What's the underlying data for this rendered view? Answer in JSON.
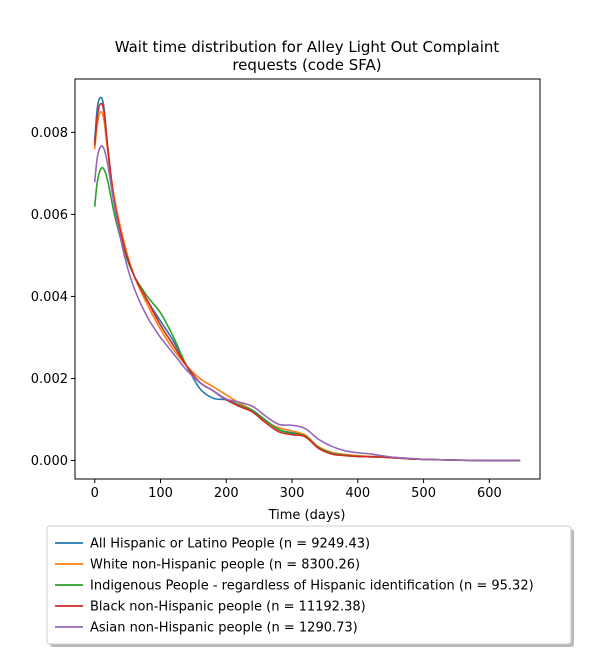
{
  "chart_data": {
    "type": "line",
    "title_lines": [
      "Wait time distribution  for Alley Light Out Complaint",
      "requests (code SFA)"
    ],
    "xlabel": "Time (days)",
    "ylabel": "",
    "xlim": [
      -30,
      677
    ],
    "ylim": [
      -0.00045,
      0.0093
    ],
    "x_ticks": [
      0,
      100,
      200,
      300,
      400,
      500,
      600
    ],
    "y_ticks": [
      0.0,
      0.002,
      0.004,
      0.006,
      0.008
    ],
    "y_tick_labels": [
      "0.000",
      "0.002",
      "0.004",
      "0.006",
      "0.008"
    ],
    "grid": false,
    "legend_placement": "below",
    "series": [
      {
        "name": "All Hispanic or Latino People (n = 9249.43)",
        "color": "#1f77b4",
        "points": [
          [
            0,
            0.0078
          ],
          [
            4,
            0.0086
          ],
          [
            9,
            0.00885
          ],
          [
            14,
            0.0086
          ],
          [
            20,
            0.0076
          ],
          [
            30,
            0.0063
          ],
          [
            45,
            0.0052
          ],
          [
            60,
            0.0045
          ],
          [
            80,
            0.0039
          ],
          [
            100,
            0.0034
          ],
          [
            120,
            0.0029
          ],
          [
            140,
            0.0023
          ],
          [
            160,
            0.00175
          ],
          [
            180,
            0.00152
          ],
          [
            200,
            0.00148
          ],
          [
            220,
            0.00135
          ],
          [
            240,
            0.00122
          ],
          [
            260,
            0.00098
          ],
          [
            280,
            0.00075
          ],
          [
            300,
            0.00068
          ],
          [
            320,
            0.00062
          ],
          [
            340,
            0.00032
          ],
          [
            360,
            0.00018
          ],
          [
            380,
            0.00014
          ],
          [
            400,
            0.00011
          ],
          [
            420,
            0.0001
          ],
          [
            440,
            9e-05
          ],
          [
            460,
            7e-05
          ],
          [
            480,
            5e-05
          ],
          [
            500,
            3e-05
          ],
          [
            550,
            1e-05
          ],
          [
            600,
            0.0
          ],
          [
            646,
            0.0
          ]
        ]
      },
      {
        "name": "White non-Hispanic people (n = 8300.26)",
        "color": "#ff7f0e",
        "points": [
          [
            0,
            0.0076
          ],
          [
            4,
            0.0082
          ],
          [
            9,
            0.0085
          ],
          [
            14,
            0.0083
          ],
          [
            20,
            0.0075
          ],
          [
            30,
            0.0064
          ],
          [
            45,
            0.0053
          ],
          [
            60,
            0.0045
          ],
          [
            80,
            0.0038
          ],
          [
            100,
            0.0032
          ],
          [
            120,
            0.0027
          ],
          [
            140,
            0.0023
          ],
          [
            160,
            0.002
          ],
          [
            180,
            0.0018
          ],
          [
            200,
            0.0016
          ],
          [
            220,
            0.0014
          ],
          [
            240,
            0.00122
          ],
          [
            260,
            0.00095
          ],
          [
            280,
            0.0008
          ],
          [
            300,
            0.00072
          ],
          [
            320,
            0.00062
          ],
          [
            340,
            0.00034
          ],
          [
            360,
            0.0002
          ],
          [
            380,
            0.00015
          ],
          [
            400,
            0.00012
          ],
          [
            420,
            0.0001
          ],
          [
            440,
            8e-05
          ],
          [
            460,
            6e-05
          ],
          [
            480,
            4e-05
          ],
          [
            500,
            3e-05
          ],
          [
            550,
            1e-05
          ],
          [
            600,
            0.0
          ],
          [
            646,
            0.0
          ]
        ]
      },
      {
        "name": "Indigenous People - regardless of Hispanic identification (n = 95.32)",
        "color": "#2ca02c",
        "points": [
          [
            0,
            0.0062
          ],
          [
            4,
            0.0068
          ],
          [
            9,
            0.0071
          ],
          [
            14,
            0.0071
          ],
          [
            20,
            0.0068
          ],
          [
            30,
            0.006
          ],
          [
            45,
            0.0051
          ],
          [
            60,
            0.0045
          ],
          [
            80,
            0.004
          ],
          [
            100,
            0.0036
          ],
          [
            120,
            0.003
          ],
          [
            140,
            0.0023
          ],
          [
            160,
            0.0019
          ],
          [
            180,
            0.0017
          ],
          [
            200,
            0.00148
          ],
          [
            220,
            0.00135
          ],
          [
            240,
            0.00122
          ],
          [
            260,
            0.00098
          ],
          [
            280,
            0.00075
          ],
          [
            300,
            0.00066
          ],
          [
            320,
            0.0006
          ],
          [
            340,
            0.00032
          ],
          [
            360,
            0.00018
          ],
          [
            380,
            0.00013
          ],
          [
            400,
            0.0001
          ],
          [
            420,
            9e-05
          ],
          [
            440,
            8e-05
          ],
          [
            460,
            6e-05
          ],
          [
            480,
            4e-05
          ],
          [
            500,
            3e-05
          ],
          [
            550,
            1e-05
          ],
          [
            600,
            0.0
          ],
          [
            646,
            0.0
          ]
        ]
      },
      {
        "name": "Black non-Hispanic people (n = 11192.38)",
        "color": "#d62728",
        "points": [
          [
            0,
            0.0077
          ],
          [
            4,
            0.0084
          ],
          [
            9,
            0.0087
          ],
          [
            14,
            0.0085
          ],
          [
            20,
            0.0076
          ],
          [
            30,
            0.0063
          ],
          [
            45,
            0.0052
          ],
          [
            60,
            0.0045
          ],
          [
            80,
            0.0039
          ],
          [
            100,
            0.0033
          ],
          [
            120,
            0.0028
          ],
          [
            140,
            0.0023
          ],
          [
            160,
            0.0019
          ],
          [
            180,
            0.0017
          ],
          [
            200,
            0.00148
          ],
          [
            220,
            0.00132
          ],
          [
            240,
            0.00118
          ],
          [
            260,
            0.00092
          ],
          [
            280,
            0.0007
          ],
          [
            300,
            0.00063
          ],
          [
            320,
            0.00058
          ],
          [
            340,
            0.0003
          ],
          [
            360,
            0.00016
          ],
          [
            380,
            0.00012
          ],
          [
            400,
            0.0001
          ],
          [
            420,
            9e-05
          ],
          [
            440,
            8e-05
          ],
          [
            460,
            6e-05
          ],
          [
            480,
            4e-05
          ],
          [
            500,
            3e-05
          ],
          [
            550,
            1e-05
          ],
          [
            600,
            0.0
          ],
          [
            646,
            0.0
          ]
        ]
      },
      {
        "name": "Asian non-Hispanic people (n = 1290.73)",
        "color": "#9467bd",
        "points": [
          [
            0,
            0.0068
          ],
          [
            4,
            0.0074
          ],
          [
            9,
            0.00765
          ],
          [
            14,
            0.0076
          ],
          [
            20,
            0.0072
          ],
          [
            30,
            0.0062
          ],
          [
            45,
            0.005
          ],
          [
            60,
            0.0042
          ],
          [
            80,
            0.0035
          ],
          [
            100,
            0.003
          ],
          [
            120,
            0.0026
          ],
          [
            140,
            0.0022
          ],
          [
            160,
            0.0019
          ],
          [
            180,
            0.0017
          ],
          [
            200,
            0.0015
          ],
          [
            220,
            0.00142
          ],
          [
            240,
            0.00132
          ],
          [
            260,
            0.00108
          ],
          [
            280,
            0.00088
          ],
          [
            300,
            0.00086
          ],
          [
            320,
            0.00078
          ],
          [
            340,
            0.00052
          ],
          [
            360,
            0.00035
          ],
          [
            380,
            0.00024
          ],
          [
            400,
            0.00019
          ],
          [
            420,
            0.00016
          ],
          [
            440,
            0.00011
          ],
          [
            460,
            7e-05
          ],
          [
            480,
            5e-05
          ],
          [
            500,
            3e-05
          ],
          [
            550,
            1e-05
          ],
          [
            600,
            0.0
          ],
          [
            646,
            0.0
          ]
        ]
      }
    ]
  }
}
